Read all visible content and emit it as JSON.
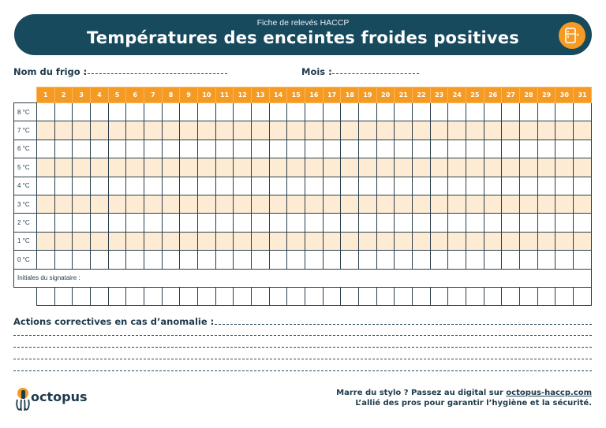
{
  "header": {
    "subtitle": "Fiche de relevés HACCP",
    "title": "Températures des enceintes froides positives",
    "icon": "fridge-icon",
    "accent_color": "#f59a23",
    "banner_color": "#184a5e"
  },
  "fields": {
    "fridge_name_label": "Nom du frigo :",
    "month_label": "Mois :"
  },
  "grid": {
    "days": [
      "1",
      "2",
      "3",
      "4",
      "5",
      "6",
      "7",
      "8",
      "9",
      "10",
      "11",
      "12",
      "13",
      "14",
      "15",
      "16",
      "17",
      "18",
      "19",
      "20",
      "21",
      "22",
      "23",
      "24",
      "25",
      "26",
      "27",
      "28",
      "29",
      "30",
      "31"
    ],
    "rows": [
      "8 °C",
      "7 °C",
      "6 °C",
      "5 °C",
      "4 °C",
      "3 °C",
      "2 °C",
      "1 °C",
      "0 °C"
    ],
    "signature_label": "Initiales du signataire :"
  },
  "actions": {
    "label": "Actions correctives en cas d’anomalie :"
  },
  "footer": {
    "brand": "octopus",
    "promo_line1_prefix": "Marre du stylo ? Passez au digital sur ",
    "promo_link": "octopus-haccp.com",
    "promo_line2": "L’allié des pros pour garantir l’hygiène et la sécurité."
  }
}
